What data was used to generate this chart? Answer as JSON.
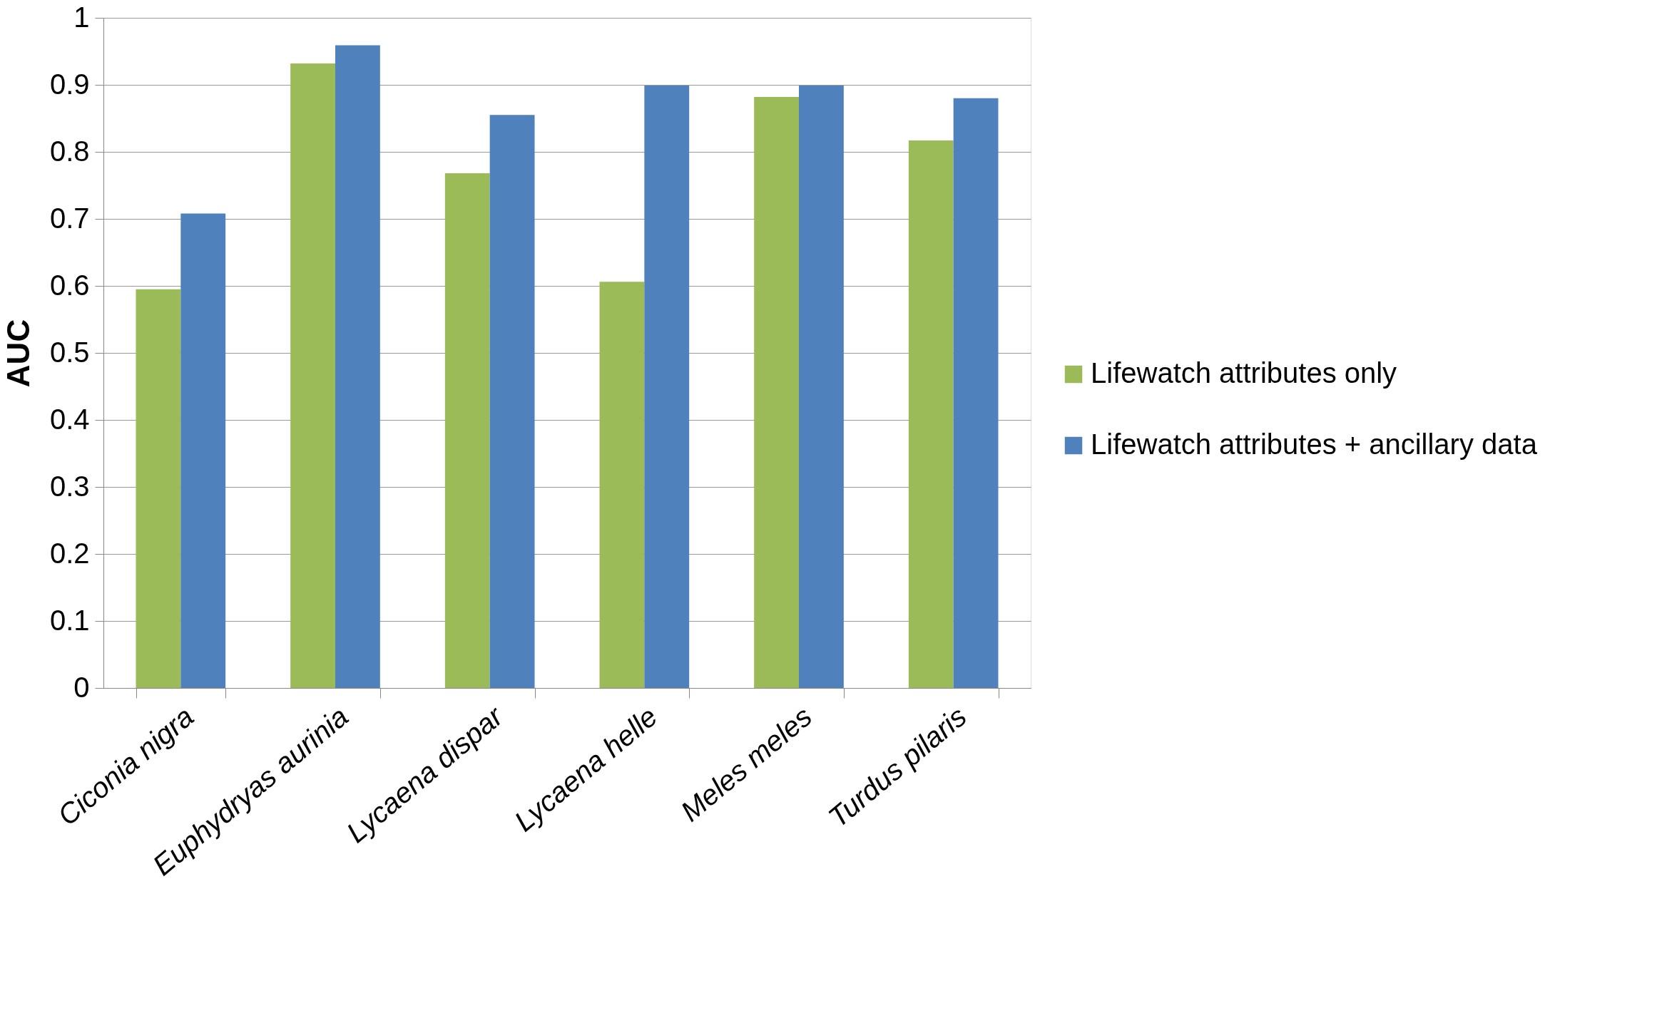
{
  "chart_data": {
    "type": "bar",
    "ylabel": "AUC",
    "categories": [
      "Ciconia nigra",
      "Euphydryas aurinia",
      "Lycaena dispar",
      "Lycaena helle",
      "Meles meles",
      "Turdus pilaris"
    ],
    "series": [
      {
        "name": "Lifewatch attributes only",
        "color": "#9bbb59",
        "values": [
          0.595,
          0.932,
          0.768,
          0.606,
          0.882,
          0.817
        ]
      },
      {
        "name": "Lifewatch attributes + ancillary data",
        "color": "#4f81bd",
        "values": [
          0.708,
          0.959,
          0.855,
          0.899,
          0.899,
          0.88
        ]
      }
    ],
    "ylim": [
      0,
      1
    ],
    "yticks": [
      0,
      0.1,
      0.2,
      0.3,
      0.4,
      0.5,
      0.6,
      0.7,
      0.8,
      0.9,
      1
    ],
    "grid": "y",
    "legend": "right"
  }
}
